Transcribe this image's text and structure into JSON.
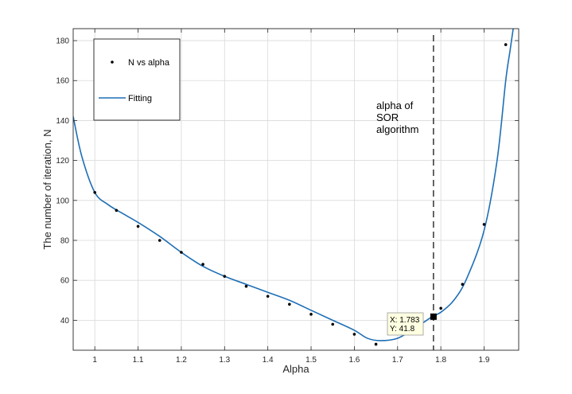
{
  "chart_data": {
    "type": "scatter",
    "xlabel": "Alpha",
    "ylabel": "The number of iteration, N",
    "xlim": [
      0.95,
      1.98
    ],
    "ylim": [
      25,
      186
    ],
    "xticks": [
      1,
      1.1,
      1.2,
      1.3,
      1.4,
      1.5,
      1.6,
      1.7,
      1.8,
      1.9
    ],
    "yticks": [
      40,
      60,
      80,
      100,
      120,
      140,
      160,
      180
    ],
    "grid": true,
    "legend_position": "top-left",
    "series": [
      {
        "name": "N vs alpha",
        "kind": "markers",
        "color": "#000000",
        "x": [
          1.0,
          1.05,
          1.1,
          1.15,
          1.2,
          1.25,
          1.3,
          1.35,
          1.4,
          1.45,
          1.5,
          1.55,
          1.6,
          1.65,
          1.8,
          1.85,
          1.9,
          1.95
        ],
        "y": [
          104,
          95,
          87,
          80,
          74,
          68,
          62,
          57,
          52,
          48,
          43,
          38,
          33,
          28,
          46,
          58,
          88,
          178
        ]
      },
      {
        "name": "Fitting",
        "kind": "line",
        "color": "#1f6fb5",
        "x": [
          0.95,
          0.97,
          1.0,
          1.03,
          1.06,
          1.1,
          1.15,
          1.2,
          1.25,
          1.3,
          1.35,
          1.4,
          1.45,
          1.5,
          1.55,
          1.6,
          1.63,
          1.66,
          1.7,
          1.74,
          1.78,
          1.8,
          1.83,
          1.86,
          1.9,
          1.93,
          1.95,
          1.96,
          1.97
        ],
        "y": [
          142,
          122,
          104,
          98,
          94,
          89,
          82,
          74,
          67,
          62,
          58,
          54,
          50,
          45,
          40,
          35,
          31,
          29.8,
          31,
          36,
          41.8,
          44,
          50,
          61,
          85,
          120,
          160,
          175,
          190
        ]
      }
    ],
    "vline": {
      "x": 1.783,
      "style": "dashed",
      "color": "#000000"
    },
    "annotation": {
      "lines": [
        "alpha of",
        "SOR",
        "algorithm"
      ]
    },
    "datatip": {
      "x": 1.783,
      "y": 41.8,
      "lines": [
        "X: 1.783",
        "Y: 41.8"
      ]
    }
  }
}
